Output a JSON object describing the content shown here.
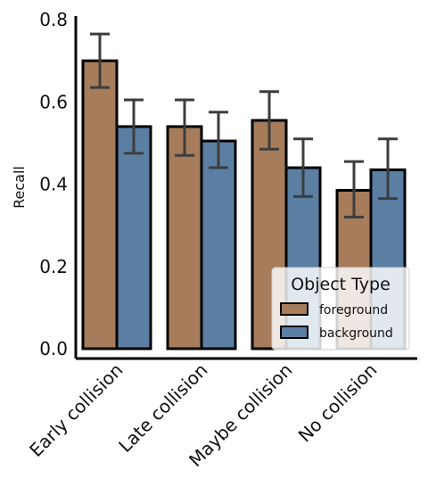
{
  "chart_data": {
    "type": "bar",
    "ylabel": "Recall",
    "xlabel": "",
    "ylim": [
      0,
      0.8
    ],
    "yticks": [
      "0.0",
      "0.2",
      "0.4",
      "0.6",
      "0.8"
    ],
    "categories": [
      "Early collision",
      "Late collision",
      "Maybe collision",
      "No collision"
    ],
    "series": [
      {
        "name": "foreground",
        "color": "#a67c5b",
        "values": [
          0.7,
          0.54,
          0.555,
          0.385
        ],
        "err_low": [
          0.635,
          0.47,
          0.485,
          0.32
        ],
        "err_high": [
          0.765,
          0.605,
          0.625,
          0.455
        ]
      },
      {
        "name": "background",
        "color": "#5b7fa3",
        "values": [
          0.54,
          0.505,
          0.44,
          0.435
        ],
        "err_low": [
          0.475,
          0.44,
          0.37,
          0.365
        ],
        "err_high": [
          0.605,
          0.575,
          0.51,
          0.51
        ]
      }
    ],
    "legend": {
      "title": "Object Type",
      "position": "lower-right"
    },
    "grid": false
  }
}
